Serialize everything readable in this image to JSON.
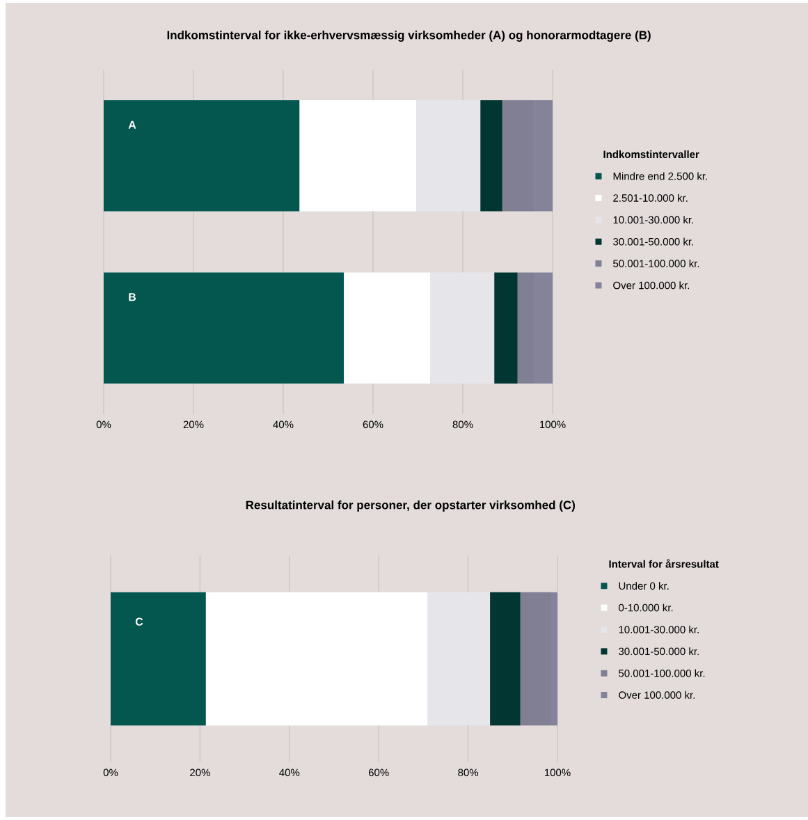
{
  "chart_data": [
    {
      "type": "bar",
      "orientation": "horizontal",
      "stacked": true,
      "title": "Indkomstinterval for ikke-erhvervsmæssig virksomheder (A) og honorarmodtagere (B)",
      "categories": [
        "A",
        "B"
      ],
      "legend_title": "Indkomstintervaller",
      "legend": "right",
      "grid": "x",
      "xlim": [
        0,
        100
      ],
      "xticks": [
        {
          "value": 0,
          "label": "0%"
        },
        {
          "value": 20,
          "label": "20%"
        },
        {
          "value": 40,
          "label": "40%"
        },
        {
          "value": 60,
          "label": "60%"
        },
        {
          "value": 80,
          "label": "80%"
        },
        {
          "value": 100,
          "label": "100%"
        }
      ],
      "series": [
        {
          "name": "Mindre end 2.500 kr.",
          "color": "#03574f",
          "values": [
            43.6,
            53.5
          ]
        },
        {
          "name": "2.501-10.000 kr.",
          "color": "#ffffff",
          "values": [
            26.0,
            19.2
          ]
        },
        {
          "name": "10.001-30.000 kr.",
          "color": "#e6e5e9",
          "values": [
            14.3,
            14.3
          ]
        },
        {
          "name": "30.001-50.000 kr.",
          "color": "#023633",
          "values": [
            4.9,
            5.2
          ]
        },
        {
          "name": "50.001-100.000 kr.",
          "color": "#807f94",
          "values": [
            7.2,
            3.9
          ]
        },
        {
          "name": "Over 100.000 kr.",
          "color": "#84839a",
          "values": [
            4.0,
            3.9
          ]
        }
      ]
    },
    {
      "type": "bar",
      "orientation": "horizontal",
      "stacked": true,
      "title": "Resultatinterval for personer, der opstarter virksomhed (C)",
      "categories": [
        "C"
      ],
      "legend_title": "Interval for årsresultat",
      "legend": "right",
      "grid": "x",
      "xlim": [
        0,
        100
      ],
      "xticks": [
        {
          "value": 0,
          "label": "0%"
        },
        {
          "value": 20,
          "label": "20%"
        },
        {
          "value": 40,
          "label": "40%"
        },
        {
          "value": 60,
          "label": "60%"
        },
        {
          "value": 80,
          "label": "80%"
        },
        {
          "value": 100,
          "label": "100%"
        }
      ],
      "series": [
        {
          "name": "Under 0 kr.",
          "color": "#03574f",
          "values": [
            21.3
          ]
        },
        {
          "name": "0-10.000 kr.",
          "color": "#ffffff",
          "values": [
            49.6
          ]
        },
        {
          "name": "10.001-30.000 kr.",
          "color": "#e6e5e9",
          "values": [
            14.0
          ]
        },
        {
          "name": "30.001-50.000 kr.",
          "color": "#023633",
          "values": [
            6.8
          ]
        },
        {
          "name": "50.001-100.000 kr.",
          "color": "#807f94",
          "values": [
            6.9
          ]
        },
        {
          "name": "Over 100.000 kr.",
          "color": "#84839a",
          "values": [
            1.4
          ]
        }
      ]
    }
  ]
}
